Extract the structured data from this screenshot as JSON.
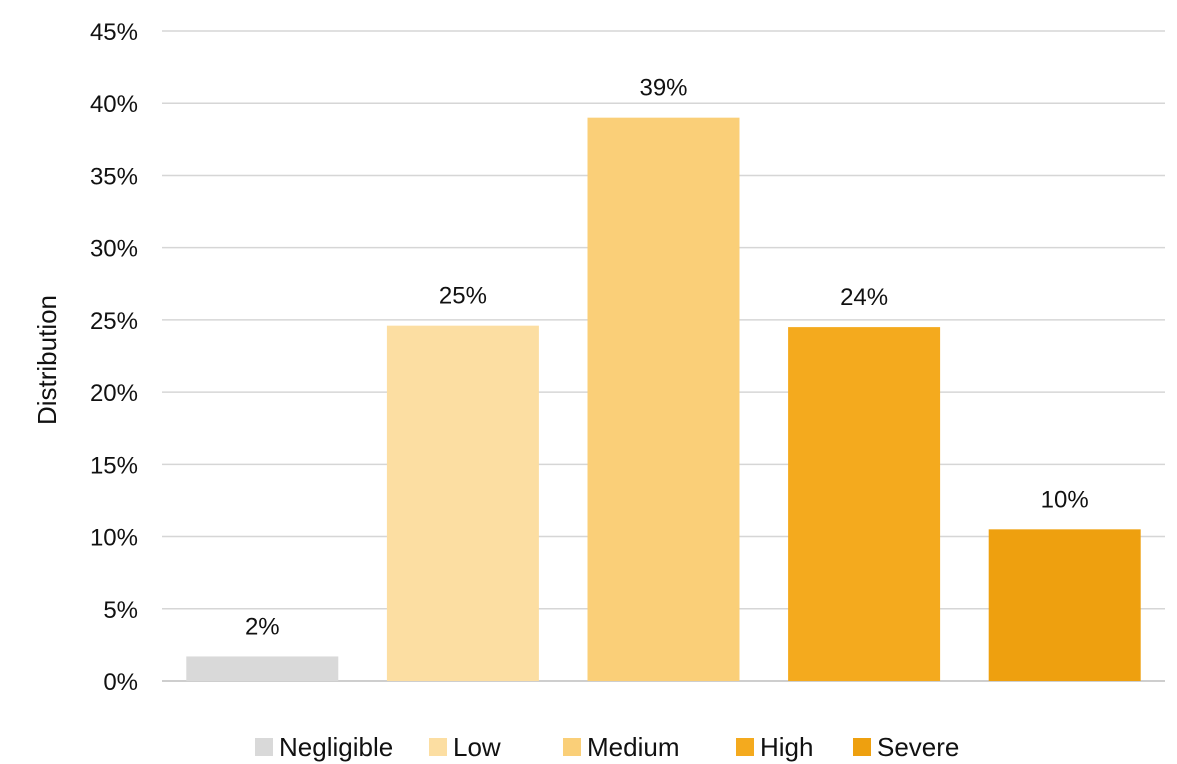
{
  "chart_data": {
    "type": "bar",
    "categories": [
      "Negligible",
      "Low",
      "Medium",
      "High",
      "Severe"
    ],
    "values": [
      1.7,
      24.6,
      39.0,
      24.5,
      10.5
    ],
    "data_labels": [
      "2%",
      "25%",
      "39%",
      "24%",
      "10%"
    ],
    "colors": [
      "#d9d9d9",
      "#fcdea2",
      "#facf78",
      "#f4aa1e",
      "#eea00f"
    ],
    "title": "",
    "xlabel": "",
    "ylabel": "Distribution",
    "ylim": [
      0,
      45
    ],
    "yticks": [
      0,
      5,
      10,
      15,
      20,
      25,
      30,
      35,
      40,
      45
    ],
    "ytick_labels": [
      "0%",
      "5%",
      "10%",
      "15%",
      "20%",
      "25%",
      "30%",
      "35%",
      "40%",
      "45%"
    ],
    "grid": true,
    "legend": {
      "position": "bottom",
      "entries": [
        "Negligible",
        "Low",
        "Medium",
        "High",
        "Severe"
      ]
    }
  }
}
